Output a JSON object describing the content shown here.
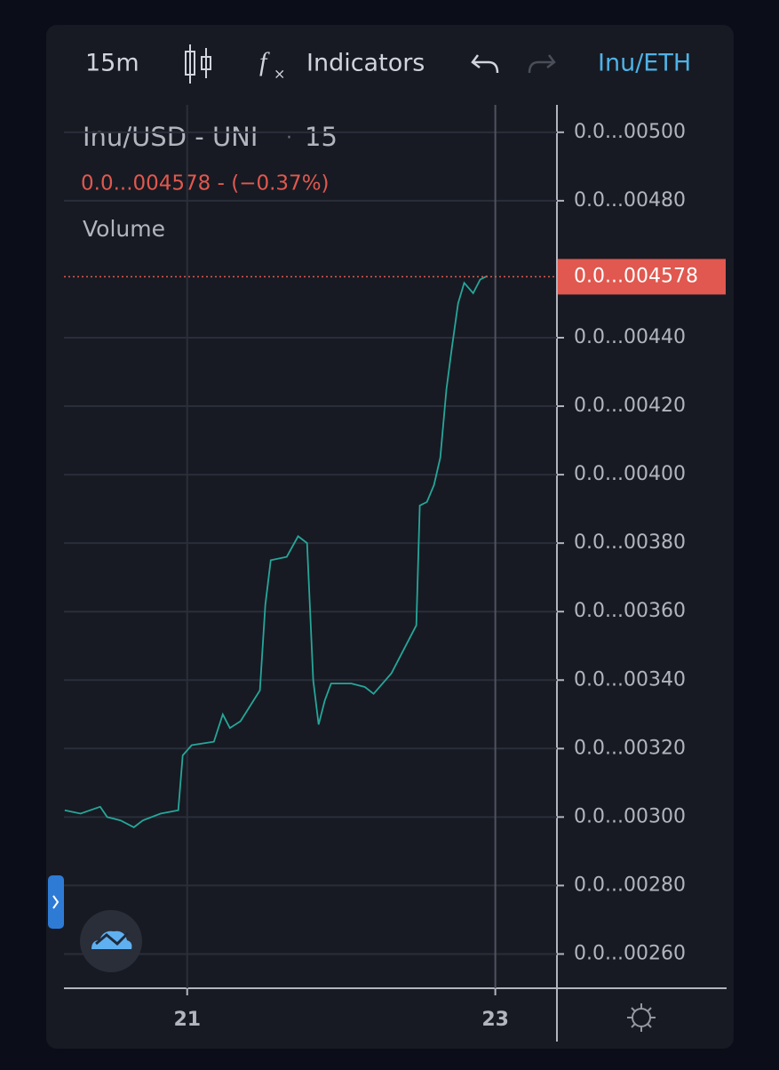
{
  "toolbar": {
    "interval": "15m",
    "indicators": "Indicators",
    "symbol_button": "Inu/ETH"
  },
  "chart_data": {
    "type": "line",
    "title": "Inu/USD - UNI",
    "interval": "15",
    "change_label": "0.0...004578 - (−0.37%)",
    "study": "Volume",
    "color": "#26a69a",
    "x": [
      20.205,
      20.308,
      20.435,
      20.481,
      20.568,
      20.654,
      20.712,
      20.827,
      20.942,
      20.971,
      21.029,
      21.173,
      21.231,
      21.277,
      21.346,
      21.472,
      21.507,
      21.542,
      21.646,
      21.72,
      21.778,
      21.818,
      21.853,
      21.893,
      21.934,
      22.066,
      22.153,
      22.21,
      22.326,
      22.487,
      22.51,
      22.556,
      22.602,
      22.643,
      22.683,
      22.718,
      22.758,
      22.798,
      22.856,
      22.902,
      22.948
    ],
    "values": [
      302,
      301,
      303,
      300,
      299,
      297,
      299,
      301,
      302,
      318,
      321,
      322,
      330,
      326,
      328,
      337,
      362,
      375,
      376,
      382,
      380,
      340,
      327,
      334,
      339,
      339,
      338,
      336,
      342,
      356,
      391,
      392,
      397,
      405,
      425,
      437,
      450,
      456,
      453,
      457,
      458
    ],
    "last_price": {
      "value": 457.8,
      "label": "0.0...004578"
    },
    "last_color": "#e0584f",
    "xlim": [
      20.2,
      23.4
    ],
    "xticks": [
      21,
      23
    ],
    "ylim": [
      250,
      508
    ],
    "yticks": [
      {
        "value": 260,
        "label": "0.0...00260"
      },
      {
        "value": 280,
        "label": "0.0...00280"
      },
      {
        "value": 300,
        "label": "0.0...00300"
      },
      {
        "value": 320,
        "label": "0.0...00320"
      },
      {
        "value": 340,
        "label": "0.0...00340"
      },
      {
        "value": 360,
        "label": "0.0...00360"
      },
      {
        "value": 380,
        "label": "0.0...00380"
      },
      {
        "value": 400,
        "label": "0.0...00400"
      },
      {
        "value": 420,
        "label": "0.0...00420"
      },
      {
        "value": 440,
        "label": "0.0...00440"
      },
      {
        "value": 480,
        "label": "0.0...00480"
      },
      {
        "value": 500,
        "label": "0.0...00500"
      }
    ],
    "grid": true
  }
}
